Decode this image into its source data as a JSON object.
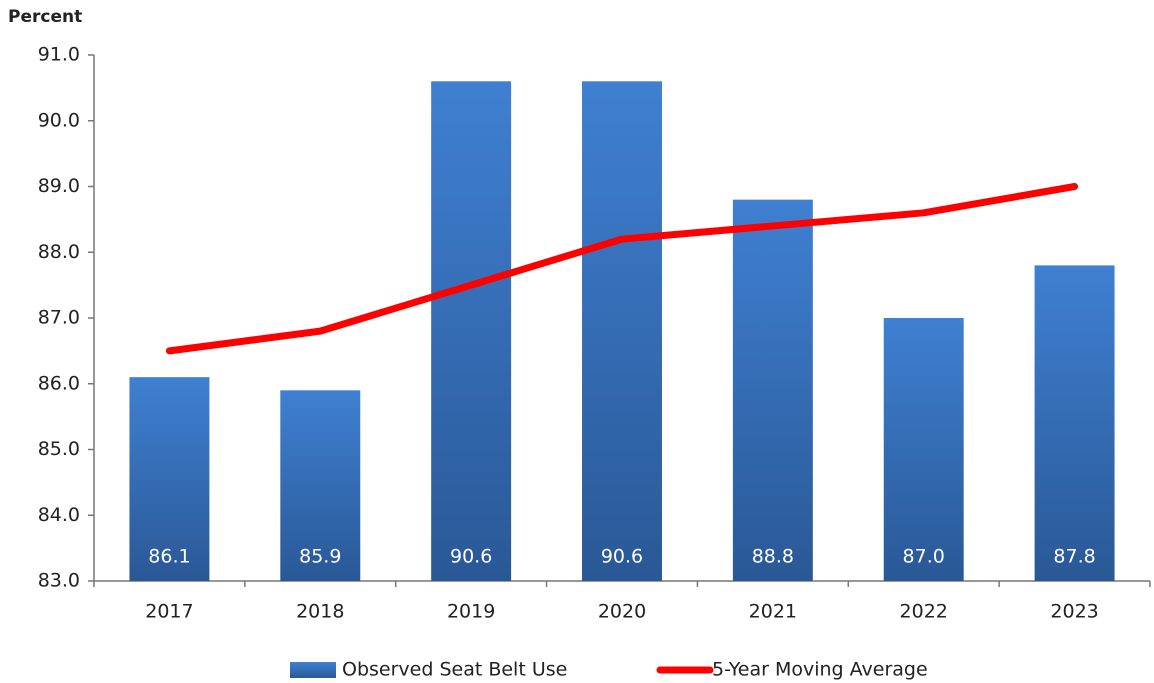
{
  "chart_data": {
    "type": "bar",
    "y_label": "Percent",
    "categories": [
      "2017",
      "2018",
      "2019",
      "2020",
      "2021",
      "2022",
      "2023"
    ],
    "ylim": [
      83,
      91
    ],
    "yticks": [
      {
        "value": 83,
        "label": "83.0"
      },
      {
        "value": 84,
        "label": "84.0"
      },
      {
        "value": 85,
        "label": "85.0"
      },
      {
        "value": 86,
        "label": "86.0"
      },
      {
        "value": 87,
        "label": "87.0"
      },
      {
        "value": 88,
        "label": "88.0"
      },
      {
        "value": 89,
        "label": "89.0"
      },
      {
        "value": 90,
        "label": "90.0"
      },
      {
        "value": 91,
        "label": "91.0"
      }
    ],
    "series": [
      {
        "name": "Observed Seat Belt Use",
        "type": "bar",
        "color": "#3a78c6",
        "values": [
          86.1,
          85.9,
          90.6,
          90.6,
          88.8,
          87.0,
          87.8
        ],
        "value_labels": [
          "86.1",
          "85.9",
          "90.6",
          "90.6",
          "88.8",
          "87.0",
          "87.8"
        ]
      },
      {
        "name": "5-Year Moving Average",
        "type": "line",
        "color": "#ff0000",
        "values": [
          86.5,
          86.8,
          87.5,
          88.2,
          88.4,
          88.6,
          89.0
        ]
      }
    ]
  }
}
